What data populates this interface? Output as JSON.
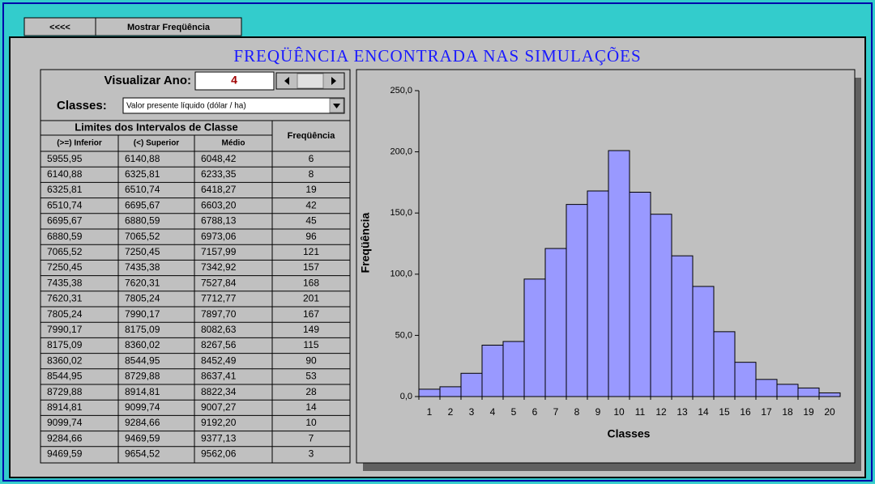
{
  "buttons": [
    "<<<<",
    "Mostrar Freqüência"
  ],
  "title": "FREQÜÊNCIA ENCONTRADA NAS SIMULAÇÕES",
  "year": {
    "label": "Visualizar Ano:",
    "value": "4"
  },
  "classes": {
    "label": "Classes:",
    "value": "Valor presente líquido  (dólar / ha)"
  },
  "table": {
    "group_header": "Limites dos Intervalos de Classe",
    "freq_header": "Freqüência",
    "subheaders": [
      "(>=) Inferior",
      "(<) Superior",
      "Médio"
    ],
    "rows": [
      [
        "5955,95",
        "6140,88",
        "6048,42"
      ],
      [
        "6140,88",
        "6325,81",
        "6233,35"
      ],
      [
        "6325,81",
        "6510,74",
        "6418,27"
      ],
      [
        "6510,74",
        "6695,67",
        "6603,20"
      ],
      [
        "6695,67",
        "6880,59",
        "6788,13"
      ],
      [
        "6880,59",
        "7065,52",
        "6973,06"
      ],
      [
        "7065,52",
        "7250,45",
        "7157,99"
      ],
      [
        "7250,45",
        "7435,38",
        "7342,92"
      ],
      [
        "7435,38",
        "7620,31",
        "7527,84"
      ],
      [
        "7620,31",
        "7805,24",
        "7712,77"
      ],
      [
        "7805,24",
        "7990,17",
        "7897,70"
      ],
      [
        "7990,17",
        "8175,09",
        "8082,63"
      ],
      [
        "8175,09",
        "8360,02",
        "8267,56"
      ],
      [
        "8360,02",
        "8544,95",
        "8452,49"
      ],
      [
        "8544,95",
        "8729,88",
        "8637,41"
      ],
      [
        "8729,88",
        "8914,81",
        "8822,34"
      ],
      [
        "8914,81",
        "9099,74",
        "9007,27"
      ],
      [
        "9099,74",
        "9284,66",
        "9192,20"
      ],
      [
        "9284,66",
        "9469,59",
        "9377,13"
      ],
      [
        "9469,59",
        "9654,52",
        "9562,06"
      ]
    ]
  },
  "chart_data": {
    "type": "bar",
    "xlabel": "Classes",
    "ylabel": "Freqüência",
    "categories": [
      "1",
      "2",
      "3",
      "4",
      "5",
      "6",
      "7",
      "8",
      "9",
      "10",
      "11",
      "12",
      "13",
      "14",
      "15",
      "16",
      "17",
      "18",
      "19",
      "20"
    ],
    "values": [
      6,
      8,
      19,
      42,
      45,
      96,
      121,
      157,
      168,
      201,
      167,
      149,
      115,
      90,
      53,
      28,
      14,
      10,
      7,
      3
    ],
    "color": "#9999ff",
    "ylim": [
      0,
      250
    ],
    "yticks": [
      {
        "value": 0,
        "label": "0,0"
      },
      {
        "value": 50,
        "label": "50,0"
      },
      {
        "value": 100,
        "label": "100,0"
      },
      {
        "value": 150,
        "label": "150,0"
      },
      {
        "value": 200,
        "label": "200,0"
      },
      {
        "value": 250,
        "label": "250,0"
      }
    ],
    "grid": false
  }
}
